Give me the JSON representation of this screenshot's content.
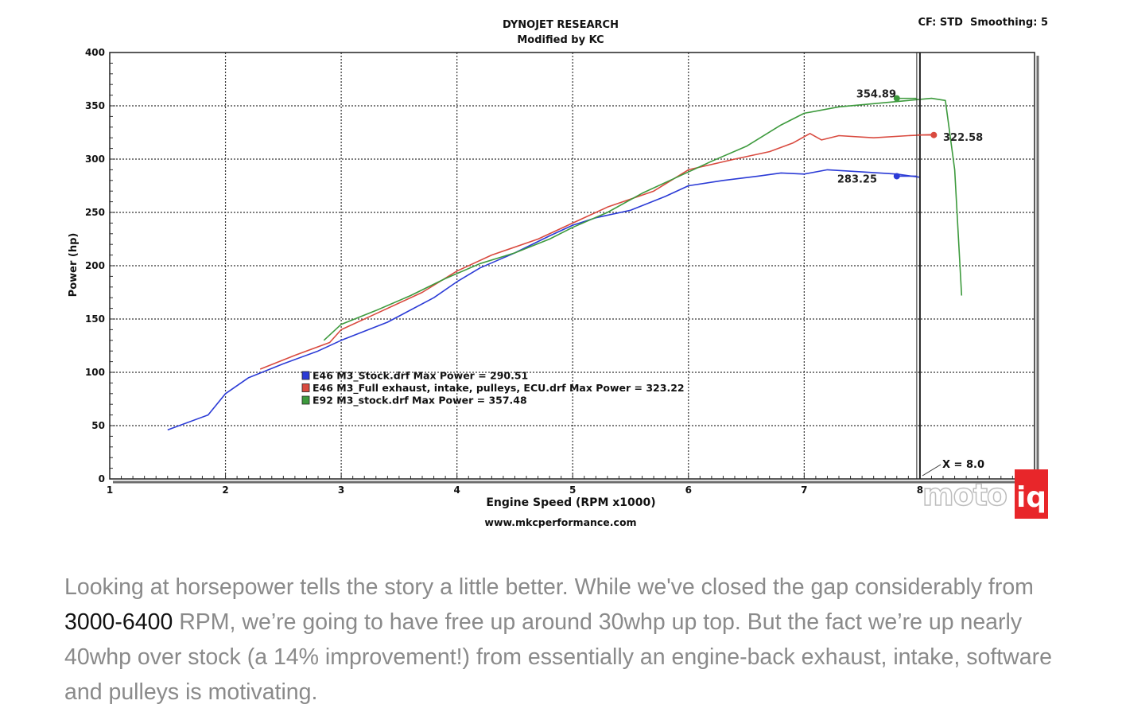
{
  "chart_data": {
    "type": "line",
    "title": "DYNOJET RESEARCH",
    "subtitle": "Modified by KC",
    "header_right": "CF: STD  Smoothing: 5",
    "xlabel": "Engine Speed (RPM x1000)",
    "ylabel": "Power (hp)",
    "footer": "www.mkcperformance.com",
    "xlim": [
      1,
      8.99
    ],
    "ylim": [
      0,
      400
    ],
    "x_ticks": [
      "1",
      "2",
      "3",
      "4",
      "5",
      "6",
      "7",
      "8"
    ],
    "y_ticks": [
      "0",
      "50",
      "100",
      "150",
      "200",
      "250",
      "300",
      "350",
      "400"
    ],
    "grid": true,
    "cursor": {
      "x": 8.0,
      "label": "X = 8.0"
    },
    "legend": {
      "placement": "center",
      "entries": [
        "E46 M3_Stock.drf Max Power = 290.51",
        "E46 M3_Full exhaust, intake, pulleys, ECU.drf Max Power = 323.22",
        "E92 M3_stock.drf Max Power = 357.48"
      ]
    },
    "series": [
      {
        "name": "E46 M3_Stock.drf",
        "color": "#2b3bd6",
        "cursor_value": "283.25",
        "x": [
          1.5,
          1.85,
          2.0,
          2.2,
          2.5,
          2.8,
          3.0,
          3.4,
          3.8,
          4.0,
          4.2,
          4.5,
          4.8,
          5.0,
          5.2,
          5.5,
          5.8,
          6.0,
          6.3,
          6.6,
          6.8,
          7.0,
          7.2,
          7.5,
          7.8,
          8.0
        ],
        "y": [
          46,
          60,
          80,
          95,
          108,
          120,
          130,
          147,
          170,
          185,
          198,
          212,
          228,
          238,
          245,
          252,
          265,
          275,
          280,
          284,
          287,
          286,
          290,
          288,
          286,
          283
        ]
      },
      {
        "name": "E46 M3_Full exhaust, intake, pulleys, ECU.drf",
        "color": "#d94a3f",
        "cursor_value": "322.58",
        "x": [
          2.3,
          2.6,
          2.9,
          3.0,
          3.3,
          3.7,
          4.0,
          4.3,
          4.7,
          5.0,
          5.3,
          5.7,
          6.0,
          6.4,
          6.7,
          6.9,
          7.05,
          7.15,
          7.3,
          7.6,
          7.9,
          8.1
        ],
        "y": [
          103,
          116,
          128,
          140,
          155,
          175,
          195,
          210,
          225,
          240,
          255,
          270,
          290,
          300,
          307,
          315,
          324,
          318,
          322,
          320,
          322,
          323
        ]
      },
      {
        "name": "E92 M3_stock.drf",
        "color": "#3d9a3d",
        "cursor_value": "354.89",
        "x": [
          2.85,
          3.0,
          3.3,
          3.6,
          3.9,
          4.2,
          4.5,
          4.8,
          5.0,
          5.3,
          5.6,
          5.9,
          6.2,
          6.5,
          6.8,
          7.0,
          7.3,
          7.6,
          7.9,
          8.1,
          8.22,
          8.3,
          8.36
        ],
        "y": [
          130,
          145,
          158,
          172,
          188,
          202,
          212,
          225,
          236,
          250,
          268,
          283,
          298,
          312,
          332,
          343,
          349,
          352,
          355,
          357,
          355,
          290,
          172
        ]
      }
    ]
  },
  "watermark": {
    "text_left": "moto",
    "text_right": "iq"
  },
  "caption": {
    "text_before": "Looking at horsepower tells the story a little better.  While we've closed the gap considerably from ",
    "link_text": "3000-6400",
    "text_after": " RPM, we’re going to have free up around 30whp up top.  But the fact we’re up nearly 40whp over stock (a 14% improvement!) from essentially an engine-back exhaust, intake, software and pulleys is motivating."
  }
}
